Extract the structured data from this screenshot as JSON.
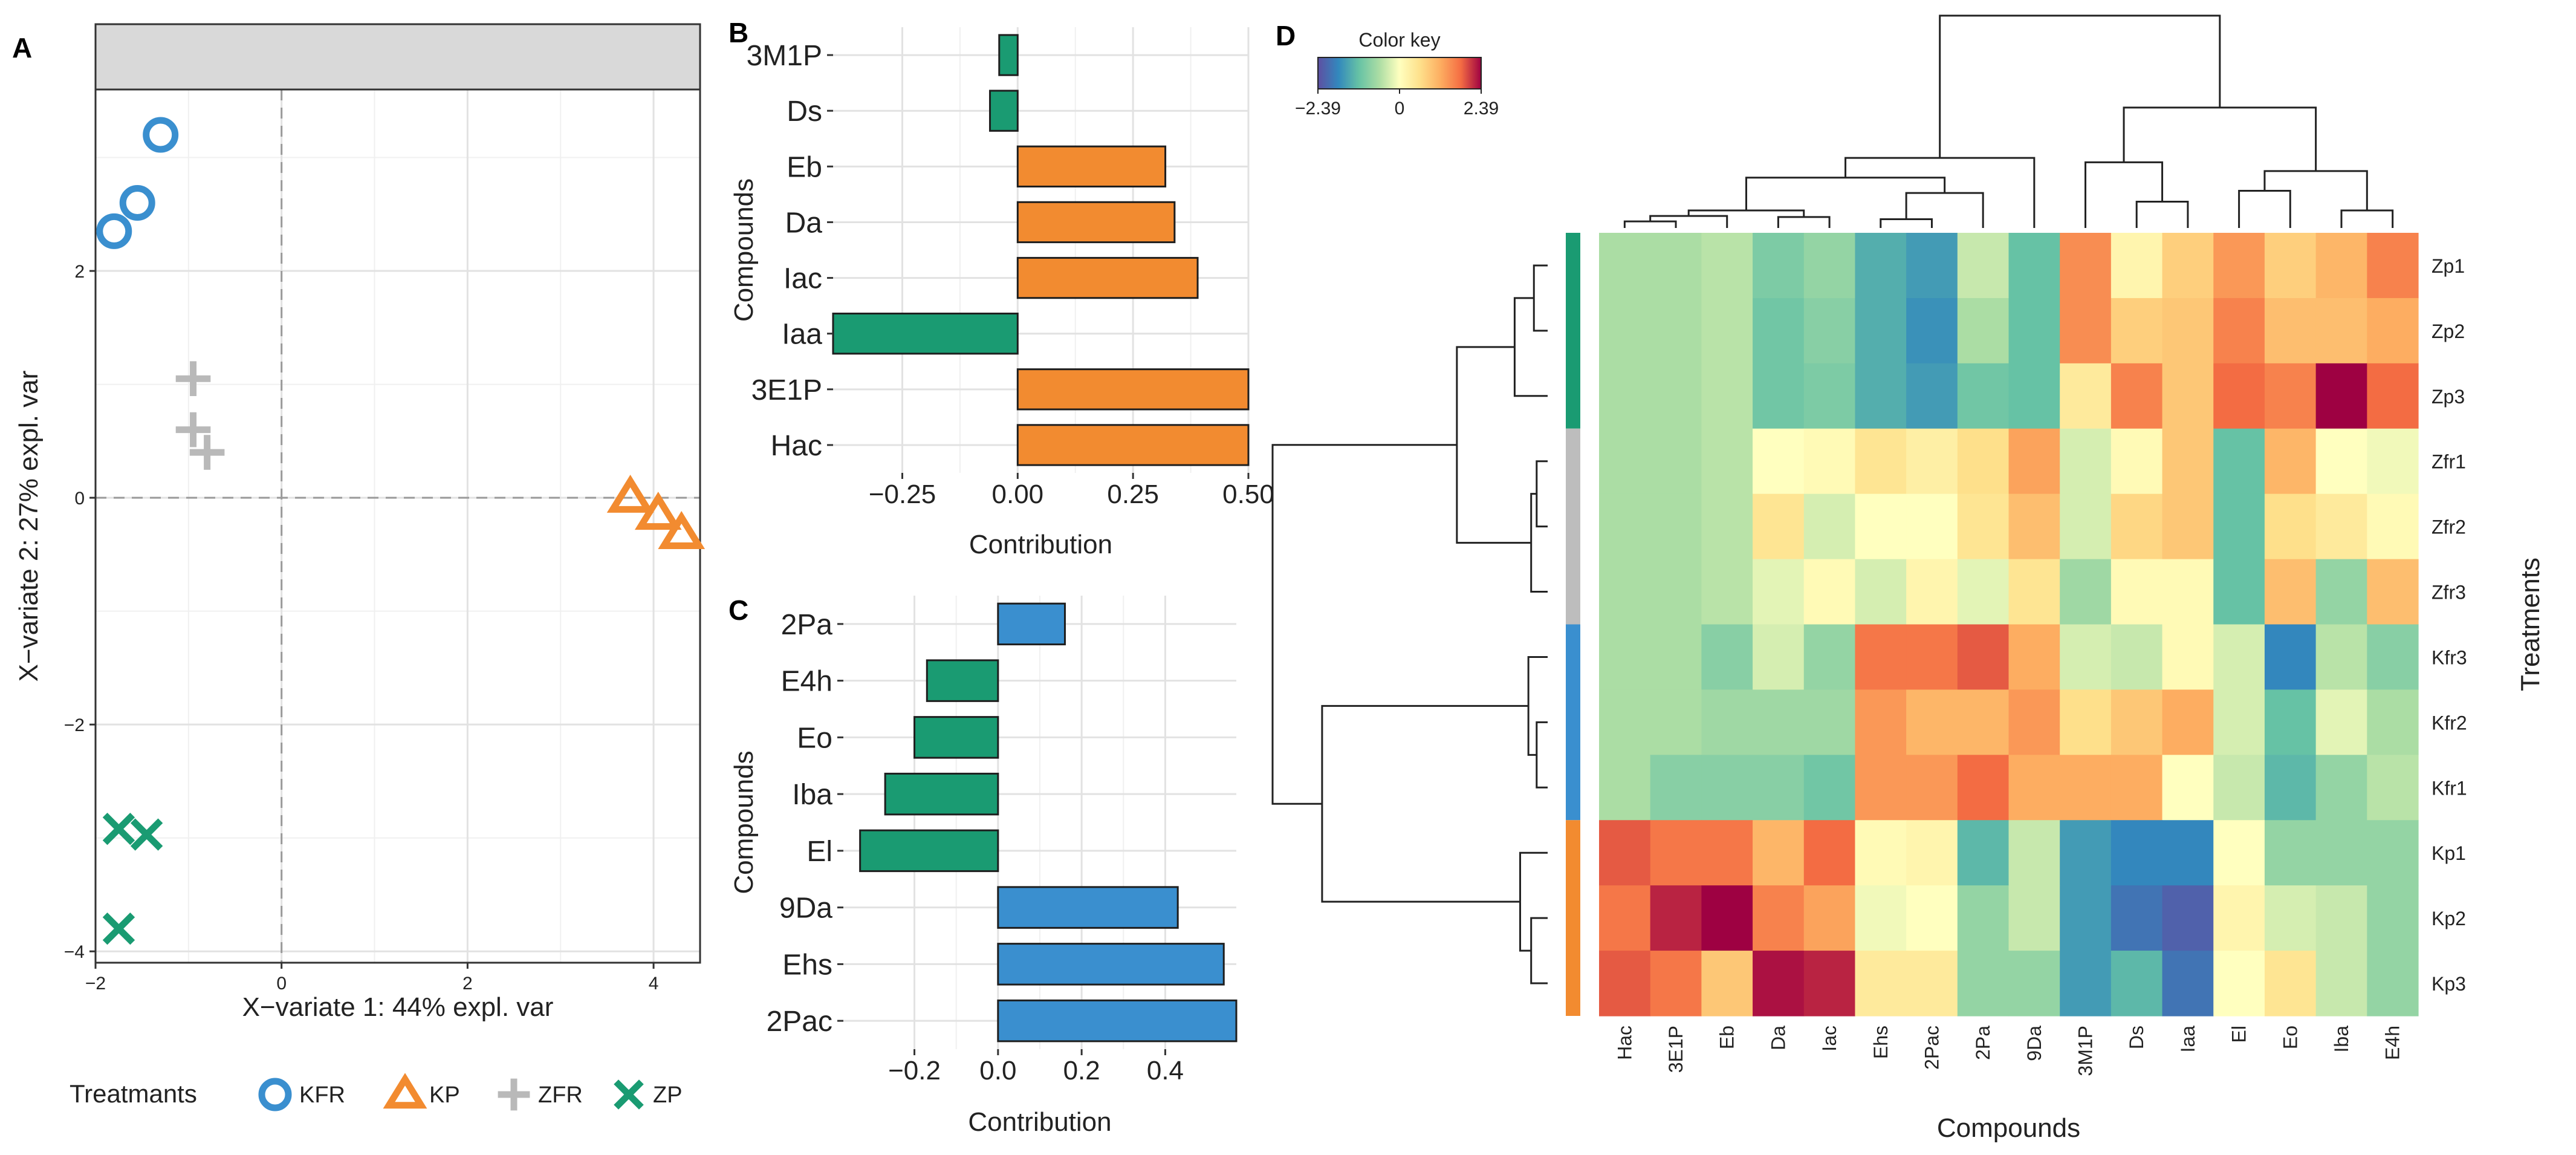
{
  "panel_labels": {
    "a": "A",
    "b": "B",
    "c": "C",
    "d": "D"
  },
  "chart_data": [
    {
      "id": "A",
      "type": "scatter",
      "xlabel": "X−variate 1: 44% expl. var",
      "ylabel": "X−variate 2: 27% expl. var",
      "xlim": [
        -2.0,
        4.5
      ],
      "ylim": [
        -4.1,
        3.6
      ],
      "xticks": [
        -2,
        0,
        2,
        4
      ],
      "xtick_labels": [
        "−2",
        "0",
        "2",
        "4"
      ],
      "yticks": [
        -4,
        -2,
        0,
        2
      ],
      "ytick_labels": [
        "−4",
        "−2",
        "0",
        "2"
      ],
      "legend_title": "Treatmants",
      "series": [
        {
          "name": "KFR",
          "marker": "circle",
          "color": "#3a8fcf",
          "points": [
            [
              -1.3,
              3.2
            ],
            [
              -1.55,
              2.6
            ],
            [
              -1.8,
              2.35
            ]
          ]
        },
        {
          "name": "KP",
          "marker": "triangle",
          "color": "#f28b30",
          "points": [
            [
              3.75,
              0.0
            ],
            [
              4.05,
              -0.15
            ],
            [
              4.3,
              -0.32
            ]
          ]
        },
        {
          "name": "ZFR",
          "marker": "plus",
          "color": "#b9b9b9",
          "points": [
            [
              -0.95,
              1.05
            ],
            [
              -0.95,
              0.6
            ],
            [
              -0.8,
              0.4
            ]
          ]
        },
        {
          "name": "ZP",
          "marker": "cross",
          "color": "#1a9b72",
          "points": [
            [
              -1.75,
              -2.92
            ],
            [
              -1.45,
              -2.97
            ],
            [
              -1.75,
              -3.8
            ]
          ]
        }
      ]
    },
    {
      "id": "B",
      "type": "bar",
      "orientation": "horizontal",
      "ylabel": "Compounds",
      "xlabel": "Contribution",
      "xlim": [
        -0.4,
        0.5
      ],
      "xticks": [
        -0.25,
        0.0,
        0.25,
        0.5
      ],
      "xtick_labels": [
        "−0.25",
        "0.00",
        "0.25",
        "0.50"
      ],
      "categories": [
        "3M1P",
        "Ds",
        "Eb",
        "Da",
        "Iac",
        "Iaa",
        "3E1P",
        "Hac"
      ],
      "values": [
        -0.04,
        -0.06,
        0.32,
        0.34,
        0.39,
        -0.4,
        0.5,
        0.5
      ],
      "colors": {
        "negative": "#1a9b72",
        "positive": "#f28b30"
      }
    },
    {
      "id": "C",
      "type": "bar",
      "orientation": "horizontal",
      "ylabel": "Compounds",
      "xlabel": "Contribution",
      "xlim": [
        -0.37,
        0.57
      ],
      "xticks": [
        -0.2,
        0.0,
        0.2,
        0.4
      ],
      "xtick_labels": [
        "−0.2",
        "0.0",
        "0.2",
        "0.4"
      ],
      "categories": [
        "2Pa",
        "E4h",
        "Eo",
        "Iba",
        "El",
        "9Da",
        "Ehs",
        "2Pac"
      ],
      "values": [
        0.16,
        -0.17,
        -0.2,
        -0.27,
        -0.33,
        0.43,
        0.54,
        0.57
      ],
      "colors": {
        "negative": "#1a9b72",
        "positive": "#3a8fcf"
      }
    },
    {
      "id": "D",
      "type": "heatmap",
      "xlabel": "Compounds",
      "ylabel": "Treatments",
      "color_key": {
        "title": "Color key",
        "min": -2.39,
        "mid": 0,
        "max": 2.39,
        "labels": [
          "−2.39",
          "0",
          "2.39"
        ]
      },
      "columns": [
        "Hac",
        "3E1P",
        "Eb",
        "Da",
        "Iac",
        "Ehs",
        "2Pac",
        "2Pa",
        "9Da",
        "3M1P",
        "Ds",
        "Iaa",
        "El",
        "Eo",
        "Iba",
        "E4h"
      ],
      "rows": [
        "Zp1",
        "Zp2",
        "Zp3",
        "Zfr1",
        "Zfr2",
        "Zfr3",
        "Kfr3",
        "Kfr2",
        "Kfr1",
        "Kp1",
        "Kp2",
        "Kp3"
      ],
      "row_groups": [
        {
          "name": "ZP",
          "color": "#1a9b72",
          "count": 3
        },
        {
          "name": "ZFR",
          "color": "#bdbdbd",
          "count": 3
        },
        {
          "name": "KFR",
          "color": "#3a8fcf",
          "count": 3
        },
        {
          "name": "KP",
          "color": "#f28b30",
          "count": 3
        }
      ],
      "values": [
        [
          -0.6,
          -0.6,
          -0.5,
          -1.0,
          -0.8,
          -1.4,
          -1.6,
          -0.4,
          -1.2,
          1.5,
          0.2,
          0.8,
          1.4,
          0.8,
          1.1,
          1.6
        ],
        [
          -0.6,
          -0.6,
          -0.5,
          -1.1,
          -0.9,
          -1.4,
          -1.7,
          -0.6,
          -1.2,
          1.5,
          0.8,
          0.9,
          1.6,
          1.0,
          1.0,
          1.2
        ],
        [
          -0.6,
          -0.6,
          -0.5,
          -1.1,
          -1.0,
          -1.4,
          -1.6,
          -1.1,
          -1.2,
          0.4,
          1.6,
          0.9,
          1.8,
          1.6,
          2.39,
          1.8
        ],
        [
          -0.6,
          -0.6,
          -0.5,
          0.0,
          0.1,
          0.5,
          0.3,
          0.6,
          1.3,
          -0.3,
          0.1,
          0.9,
          -1.2,
          1.1,
          0.0,
          -0.1
        ],
        [
          -0.6,
          -0.6,
          -0.5,
          0.5,
          -0.3,
          0.0,
          0.0,
          0.5,
          1.0,
          -0.3,
          0.7,
          0.9,
          -1.2,
          0.6,
          0.4,
          0.1
        ],
        [
          -0.6,
          -0.6,
          -0.5,
          -0.2,
          0.1,
          -0.3,
          0.2,
          -0.2,
          0.5,
          -0.7,
          0.1,
          0.1,
          -1.2,
          1.0,
          -0.8,
          1.0
        ],
        [
          -0.6,
          -0.6,
          -0.9,
          -0.3,
          -0.8,
          1.7,
          1.7,
          1.9,
          1.2,
          -0.3,
          -0.4,
          0.1,
          -0.3,
          -1.8,
          -0.5,
          -0.9
        ],
        [
          -0.6,
          -0.6,
          -0.7,
          -0.7,
          -0.7,
          1.4,
          1.1,
          1.1,
          1.4,
          0.6,
          0.9,
          1.2,
          -0.3,
          -1.2,
          -0.2,
          -0.6
        ],
        [
          -0.6,
          -0.9,
          -0.9,
          -0.9,
          -1.1,
          1.4,
          1.4,
          1.8,
          1.2,
          1.2,
          1.2,
          0.0,
          -0.4,
          -1.3,
          -0.8,
          -0.5
        ],
        [
          1.9,
          1.7,
          1.7,
          1.1,
          1.8,
          0.1,
          0.2,
          -1.3,
          -0.4,
          -1.6,
          -1.8,
          -1.8,
          0.0,
          -0.8,
          -0.8,
          -0.8
        ],
        [
          1.7,
          2.2,
          2.39,
          1.6,
          1.3,
          -0.1,
          0.0,
          -0.8,
          -0.4,
          -1.6,
          -2.0,
          -2.2,
          0.2,
          -0.3,
          -0.4,
          -0.8
        ],
        [
          1.9,
          1.7,
          0.9,
          2.3,
          2.2,
          0.4,
          0.4,
          -0.8,
          -0.8,
          -1.6,
          -1.3,
          -2.0,
          0.0,
          0.5,
          -0.4,
          -0.8
        ]
      ]
    }
  ]
}
